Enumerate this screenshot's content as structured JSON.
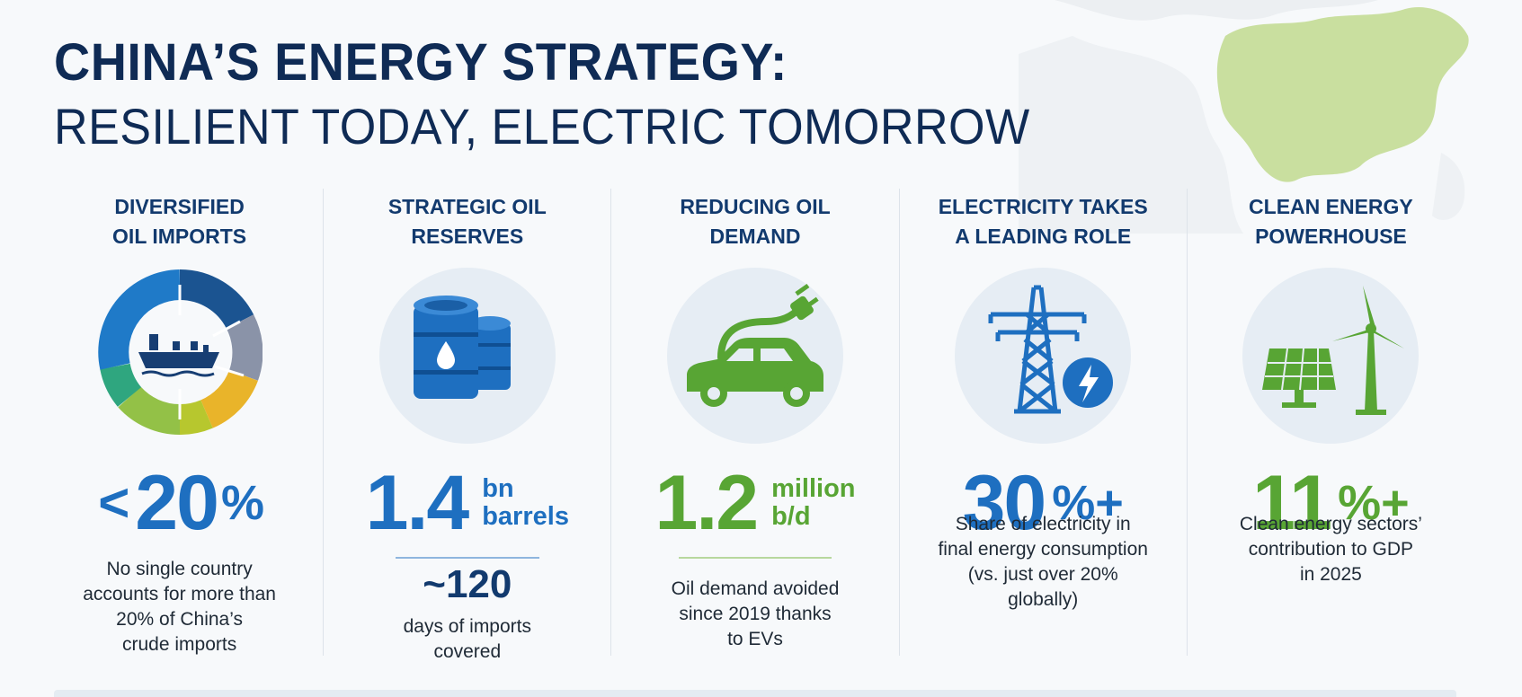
{
  "title": {
    "line1": "CHINA’S ENERGY STRATEGY:",
    "line2": "RESILIENT TODAY, ELECTRIC TOMORROW"
  },
  "colors": {
    "navy": "#0f2b55",
    "blue": "#1e6fc0",
    "green": "#58a534",
    "circle_bg": "#e6edf4"
  },
  "columns": [
    {
      "heading": "DIVERSIFIED\nOIL IMPORTS",
      "icon": "ship-donut-icon",
      "stat_prefix": "<",
      "stat_value": "20",
      "stat_unit": "%",
      "description": "No single country\naccounts for more than\n20% of China’s\ncrude imports"
    },
    {
      "heading": "STRATEGIC OIL\nRESERVES",
      "icon": "oil-barrels-icon",
      "stat_value": "1.4",
      "stat_unit_line1": "bn",
      "stat_unit_line2": "barrels",
      "sub_stat": "~120",
      "description": "days of imports\ncovered"
    },
    {
      "heading": "REDUCING OIL\nDEMAND",
      "icon": "electric-car-icon",
      "stat_value": "1.2",
      "stat_unit_line1": "million",
      "stat_unit_line2": "b/d",
      "description": "Oil demand avoided\nsince 2019 thanks\nto EVs"
    },
    {
      "heading": "ELECTRICITY TAKES\nA LEADING ROLE",
      "icon": "power-pylon-icon",
      "stat_value": "30",
      "stat_unit": "%+",
      "description": "Share of electricity in\nfinal energy consumption\n(vs. just over 20%\nglobally)"
    },
    {
      "heading": "CLEAN ENERGY\nPOWERHOUSE",
      "icon": "solar-wind-icon",
      "stat_value": "11",
      "stat_unit": "%+",
      "description": "Clean energy sectors’\ncontribution to GDP\nin 2025"
    }
  ]
}
